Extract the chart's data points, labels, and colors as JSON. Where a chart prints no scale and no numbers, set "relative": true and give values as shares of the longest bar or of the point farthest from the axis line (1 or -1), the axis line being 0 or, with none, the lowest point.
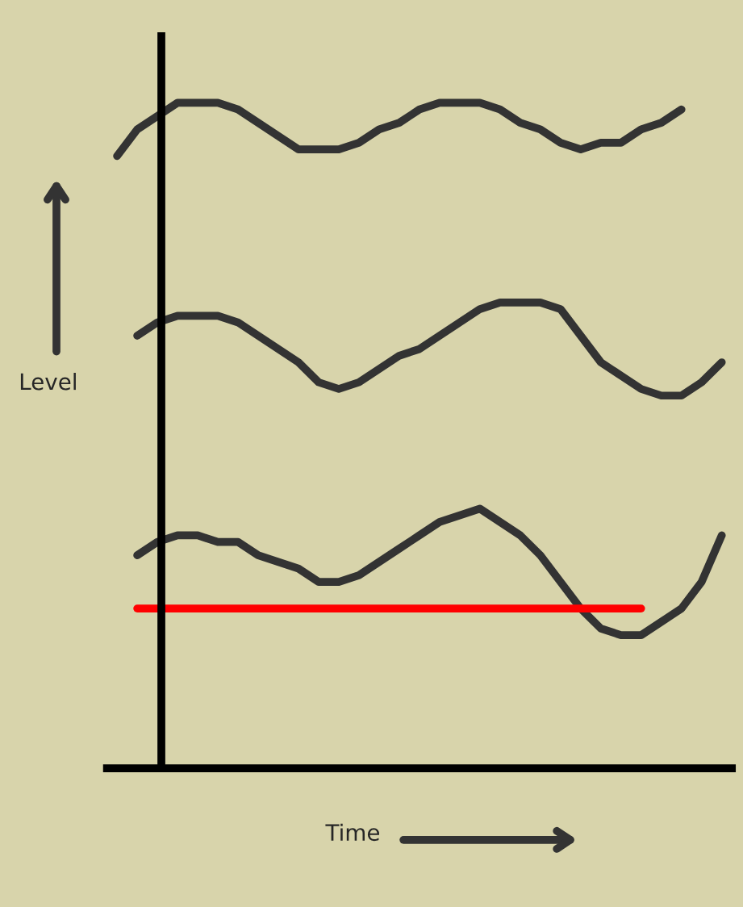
{
  "chart_data": {
    "type": "line",
    "relative": true,
    "marker": "none",
    "line_style": "solid",
    "xlabel": "Time",
    "ylabel": "Level",
    "categories": [
      null,
      null,
      null,
      null,
      null,
      null,
      null,
      null,
      null,
      null,
      null,
      null,
      null,
      null,
      null,
      null,
      null,
      null,
      null,
      null,
      null,
      null,
      null,
      null,
      null,
      null,
      null,
      null,
      null,
      null,
      null
    ],
    "series": [
      {
        "color": "#333333",
        "values": [
          0.92,
          0.96,
          0.98,
          1.0,
          1.0,
          1.0,
          0.99,
          0.97,
          0.95,
          0.93,
          0.93,
          0.93,
          0.94,
          0.96,
          0.97,
          0.99,
          1.0,
          1.0,
          1.0,
          0.99,
          0.97,
          0.96,
          0.94,
          0.93,
          0.94,
          0.94,
          0.96,
          0.97,
          0.99,
          null,
          null
        ]
      },
      {
        "color": "#333333",
        "values": [
          null,
          0.65,
          0.67,
          0.68,
          0.68,
          0.68,
          0.67,
          0.65,
          0.63,
          0.61,
          0.58,
          0.57,
          0.58,
          0.6,
          0.62,
          0.63,
          0.65,
          0.67,
          0.69,
          0.7,
          0.7,
          0.7,
          0.69,
          0.65,
          0.61,
          0.59,
          0.57,
          0.56,
          0.56,
          0.58,
          0.61
        ]
      },
      {
        "color": "#333333",
        "values": [
          null,
          0.32,
          0.34,
          0.35,
          0.35,
          0.34,
          0.34,
          0.32,
          0.31,
          0.3,
          0.28,
          0.28,
          0.29,
          0.31,
          0.33,
          0.35,
          0.37,
          0.38,
          0.39,
          0.37,
          0.35,
          0.32,
          0.28,
          0.24,
          0.21,
          0.2,
          0.2,
          0.22,
          0.24,
          0.28,
          0.35
        ]
      },
      {
        "color": "#ff0000",
        "values": [
          null,
          0.24,
          0.24,
          0.24,
          0.24,
          0.24,
          0.24,
          0.24,
          0.24,
          0.24,
          0.24,
          0.24,
          0.24,
          0.24,
          0.24,
          0.24,
          0.24,
          0.24,
          0.24,
          0.24,
          0.24,
          0.24,
          0.24,
          0.24,
          0.24,
          0.24,
          0.24,
          null,
          null,
          null,
          null
        ]
      }
    ]
  }
}
